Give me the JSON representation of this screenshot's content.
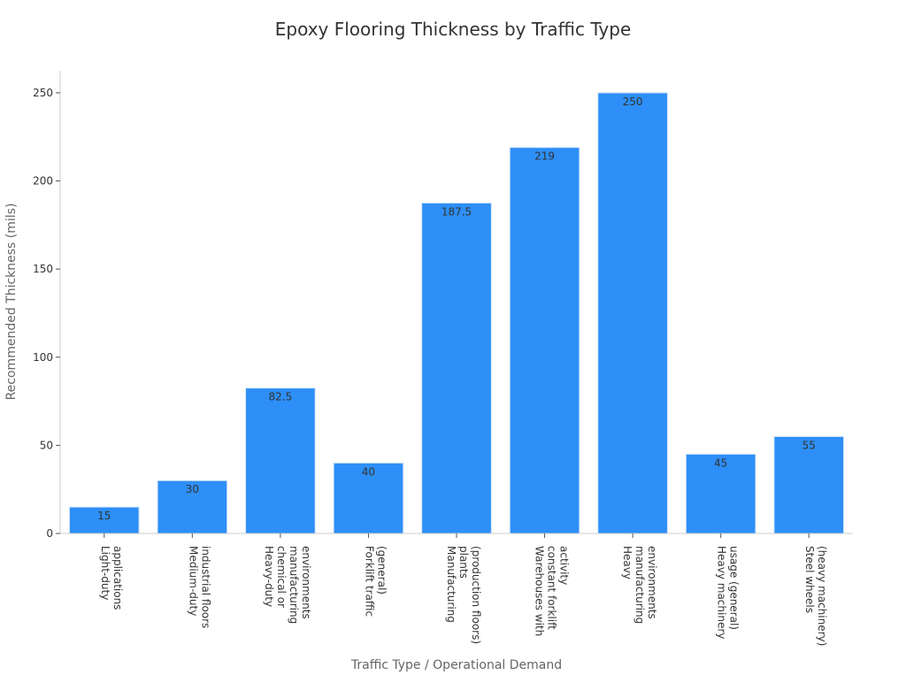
{
  "chart_data": {
    "type": "bar",
    "title": "Epoxy Flooring Thickness by Traffic Type",
    "xlabel": "Traffic Type / Operational Demand",
    "ylabel": "Recommended Thickness (mils)",
    "ylim": [
      0,
      262.5
    ],
    "yticks": [
      0,
      50,
      100,
      150,
      200,
      250
    ],
    "grid": false,
    "categories": [
      [
        "Light-duty",
        "applications"
      ],
      [
        "Medium-duty",
        "industrial floors"
      ],
      [
        "Heavy-duty",
        "chemical or",
        "manufacturing",
        "environments"
      ],
      [
        "Forklift traffic",
        "(general)"
      ],
      [
        "Manufacturing",
        "plants",
        "(production floors)"
      ],
      [
        "Warehouses with",
        "constant forklift",
        "activity"
      ],
      [
        "Heavy",
        "manufacturing",
        "environments"
      ],
      [
        "Heavy machinery",
        "usage (general)"
      ],
      [
        "Steel wheels",
        "(heavy machinery)"
      ]
    ],
    "values": [
      15,
      30,
      82.5,
      40,
      187.5,
      219,
      250,
      45,
      55
    ],
    "data_labels": [
      "15",
      "30",
      "82.5",
      "40",
      "187.5",
      "219",
      "250",
      "45",
      "55"
    ],
    "bar_color": "#2d8ff7",
    "bar_edge_color": "#d6e6fb",
    "text_color": "#333333",
    "axis_label_color": "#666666",
    "axis_color": "#cccccc"
  }
}
